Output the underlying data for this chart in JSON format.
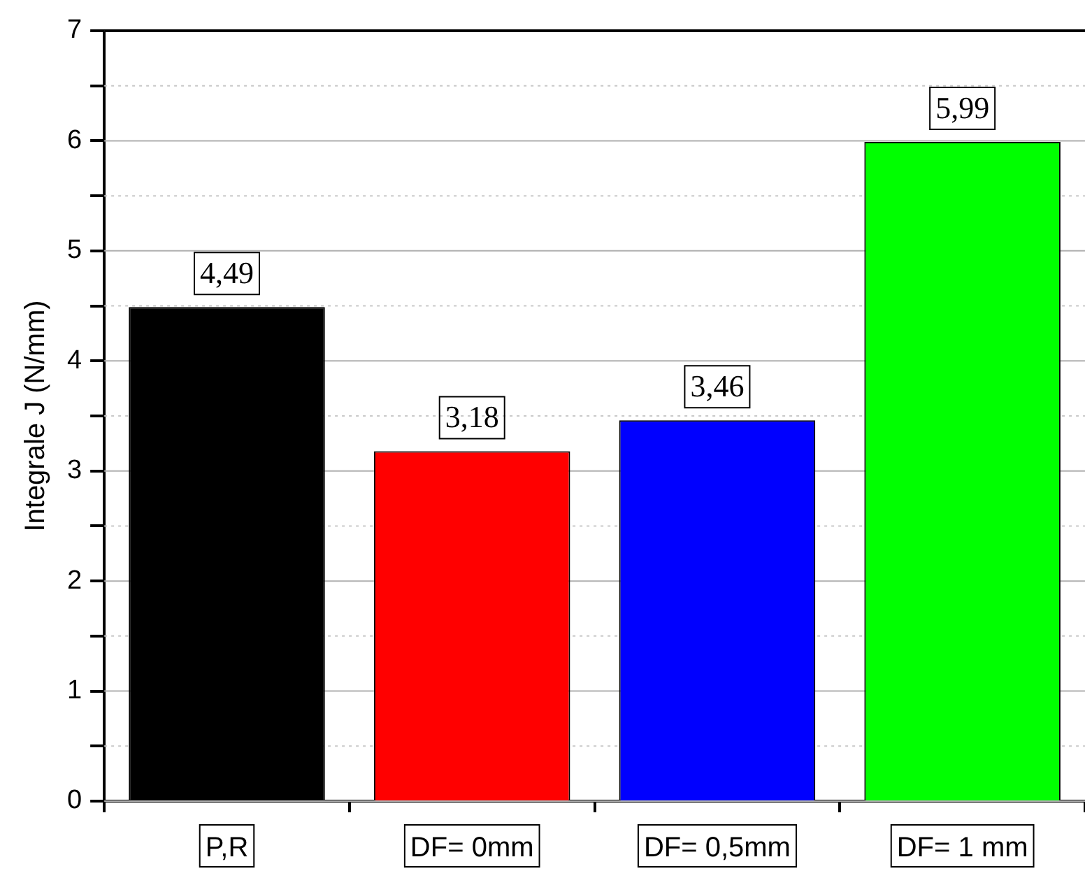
{
  "chart_data": {
    "type": "bar",
    "ylabel": "Integrale J (N/mm)",
    "categories": [
      "P,R",
      "DF= 0mm",
      "DF= 0,5mm",
      "DF= 1 mm"
    ],
    "values": [
      4.49,
      3.18,
      3.46,
      5.99
    ],
    "colors": [
      "#000000",
      "#ff0000",
      "#0000ff",
      "#00ff00"
    ],
    "value_labels": [
      "4,49",
      "3,18",
      "3,46",
      "5,99"
    ],
    "ylim": [
      0,
      7
    ],
    "yticks": [
      0,
      {
        "value": 0.5,
        "label": null
      },
      1,
      {
        "value": 1.5,
        "label": null
      },
      2,
      {
        "value": 2.5,
        "label": null
      },
      3,
      {
        "value": 3.5,
        "label": null
      },
      4,
      {
        "value": 4.5,
        "label": null
      },
      5,
      {
        "value": 5.5,
        "label": null
      },
      6,
      {
        "value": 6.5,
        "label": null
      },
      7
    ],
    "grid": true,
    "legend": false
  }
}
